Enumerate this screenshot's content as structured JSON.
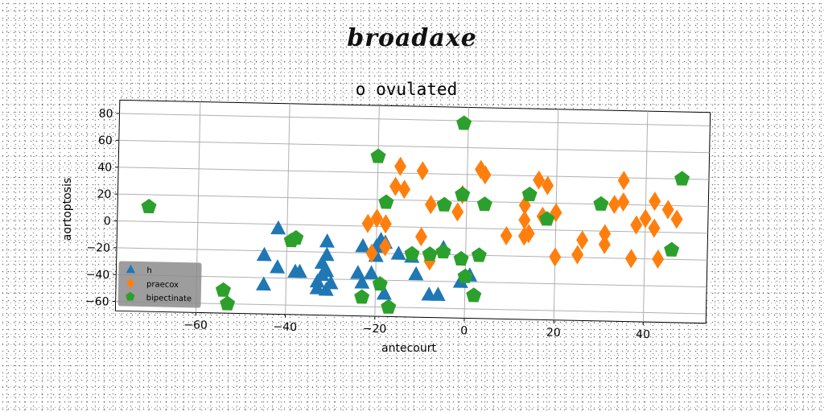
{
  "watermark": "broadaxe",
  "chart_data": {
    "type": "scatter",
    "title": "o ovulated",
    "xlabel": "antecourt",
    "ylabel": "aortoptosis",
    "xlim": [
      -78,
      54
    ],
    "ylim": [
      -67,
      90
    ],
    "xticks": [
      -60,
      -40,
      -20,
      0,
      20,
      40
    ],
    "yticks": [
      -60,
      -40,
      -20,
      0,
      20,
      40,
      60,
      80
    ],
    "grid": true,
    "legend_position": "lower-left",
    "series": [
      {
        "name": "h",
        "marker": "triangle",
        "color": "#1f77b4",
        "points": [
          [
            -42,
            -3
          ],
          [
            -45,
            -23
          ],
          [
            -42,
            -32
          ],
          [
            -38,
            -35
          ],
          [
            -37,
            -35
          ],
          [
            -31,
            -12
          ],
          [
            -31,
            -22
          ],
          [
            -32,
            -28
          ],
          [
            -31,
            -34
          ],
          [
            -32,
            -37
          ],
          [
            -33,
            -42
          ],
          [
            -30,
            -43
          ],
          [
            -33,
            -47
          ],
          [
            -31,
            -48
          ],
          [
            -45,
            -45
          ],
          [
            -23,
            -15
          ],
          [
            -20,
            -15
          ],
          [
            -19,
            -10
          ],
          [
            -18,
            -12
          ],
          [
            -20,
            -22
          ],
          [
            -24,
            -35
          ],
          [
            -23,
            -42
          ],
          [
            -21,
            -35
          ],
          [
            -18,
            -50
          ],
          [
            -15,
            -20
          ],
          [
            -12,
            -22
          ],
          [
            -11,
            -35
          ],
          [
            -8,
            -50
          ],
          [
            -6,
            -50
          ],
          [
            -5,
            -15
          ],
          [
            -1,
            -40
          ],
          [
            1,
            -35
          ]
        ]
      },
      {
        "name": "praecox",
        "marker": "diamond",
        "color": "#ff7f0e",
        "points": [
          [
            -22,
            2
          ],
          [
            -20,
            6
          ],
          [
            -21,
            -20
          ],
          [
            -18,
            2
          ],
          [
            -18,
            -15
          ],
          [
            -16,
            30
          ],
          [
            -15,
            45
          ],
          [
            -14,
            28
          ],
          [
            -10,
            42
          ],
          [
            -10,
            -7
          ],
          [
            -8,
            17
          ],
          [
            -8,
            -25
          ],
          [
            -2,
            12
          ],
          [
            -1,
            25
          ],
          [
            3,
            44
          ],
          [
            4,
            40
          ],
          [
            9,
            -5
          ],
          [
            13,
            18
          ],
          [
            13,
            7
          ],
          [
            13,
            -5
          ],
          [
            14,
            -3
          ],
          [
            16,
            37
          ],
          [
            17,
            10
          ],
          [
            18,
            33
          ],
          [
            20,
            13
          ],
          [
            20,
            -20
          ],
          [
            25,
            -18
          ],
          [
            26,
            -7
          ],
          [
            31,
            -2
          ],
          [
            31,
            -10
          ],
          [
            33,
            20
          ],
          [
            35,
            22
          ],
          [
            35,
            38
          ],
          [
            37,
            -20
          ],
          [
            38,
            5
          ],
          [
            40,
            10
          ],
          [
            42,
            23
          ],
          [
            42,
            3
          ],
          [
            43,
            -20
          ],
          [
            45,
            17
          ],
          [
            47,
            10
          ]
        ]
      },
      {
        "name": "bipectinate",
        "marker": "pentagon",
        "color": "#2ca02c",
        "points": [
          [
            -71,
            11
          ],
          [
            -54,
            -50
          ],
          [
            -53,
            -60
          ],
          [
            -39,
            -12
          ],
          [
            -38,
            -10
          ],
          [
            -20,
            52
          ],
          [
            -18,
            18
          ],
          [
            -19,
            -43
          ],
          [
            -17,
            -60
          ],
          [
            -12,
            -20
          ],
          [
            -8,
            -20
          ],
          [
            -5,
            -18
          ],
          [
            -5,
            17
          ],
          [
            -1,
            78
          ],
          [
            -1,
            -23
          ],
          [
            -1,
            25
          ],
          [
            0,
            -36
          ],
          [
            2,
            -50
          ],
          [
            4,
            18
          ],
          [
            14,
            26
          ],
          [
            18,
            8
          ],
          [
            30,
            20
          ],
          [
            46,
            -13
          ],
          [
            48,
            40
          ],
          [
            -23,
            -53
          ],
          [
            3,
            -20
          ]
        ]
      }
    ]
  }
}
